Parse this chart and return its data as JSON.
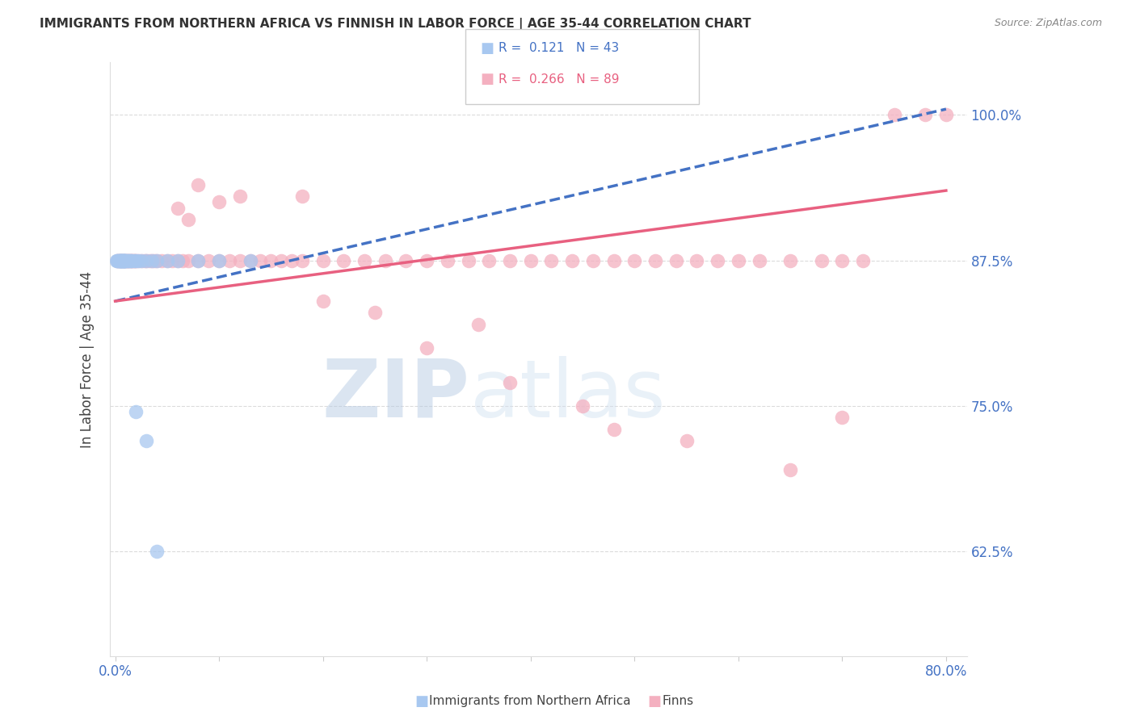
{
  "title": "IMMIGRANTS FROM NORTHERN AFRICA VS FINNISH IN LABOR FORCE | AGE 35-44 CORRELATION CHART",
  "source": "Source: ZipAtlas.com",
  "ylabel": "In Labor Force | Age 35-44",
  "yticks": [
    0.625,
    0.75,
    0.875,
    1.0
  ],
  "ytick_labels": [
    "62.5%",
    "75.0%",
    "87.5%",
    "100.0%"
  ],
  "xlim": [
    -0.005,
    0.82
  ],
  "ylim": [
    0.535,
    1.045
  ],
  "legend_r_blue": "0.121",
  "legend_n_blue": "43",
  "legend_r_pink": "0.266",
  "legend_n_pink": "89",
  "blue_color": "#a8c8f0",
  "pink_color": "#f4b0c0",
  "trend_blue_color": "#4472c4",
  "trend_pink_color": "#e86080",
  "watermark_zip": "ZIP",
  "watermark_atlas": "atlas",
  "blue_x": [
    0.001,
    0.002,
    0.003,
    0.003,
    0.004,
    0.004,
    0.005,
    0.005,
    0.005,
    0.006,
    0.006,
    0.006,
    0.007,
    0.007,
    0.007,
    0.008,
    0.008,
    0.009,
    0.009,
    0.01,
    0.01,
    0.01,
    0.012,
    0.012,
    0.013,
    0.014,
    0.015,
    0.016,
    0.018,
    0.02,
    0.022,
    0.025,
    0.03,
    0.035,
    0.04,
    0.05,
    0.06,
    0.08,
    0.1,
    0.13,
    0.02,
    0.03,
    0.04
  ],
  "blue_y": [
    0.875,
    0.875,
    0.875,
    0.875,
    0.875,
    0.875,
    0.875,
    0.875,
    0.875,
    0.875,
    0.875,
    0.875,
    0.875,
    0.875,
    0.875,
    0.875,
    0.875,
    0.875,
    0.875,
    0.875,
    0.875,
    0.875,
    0.875,
    0.875,
    0.875,
    0.875,
    0.875,
    0.875,
    0.875,
    0.875,
    0.875,
    0.875,
    0.875,
    0.875,
    0.875,
    0.875,
    0.875,
    0.875,
    0.875,
    0.875,
    0.745,
    0.72,
    0.625
  ],
  "pink_x": [
    0.002,
    0.003,
    0.004,
    0.005,
    0.006,
    0.007,
    0.008,
    0.009,
    0.01,
    0.011,
    0.012,
    0.013,
    0.014,
    0.015,
    0.016,
    0.017,
    0.018,
    0.019,
    0.02,
    0.022,
    0.025,
    0.028,
    0.03,
    0.033,
    0.035,
    0.038,
    0.04,
    0.045,
    0.05,
    0.055,
    0.06,
    0.065,
    0.07,
    0.08,
    0.09,
    0.1,
    0.11,
    0.12,
    0.13,
    0.14,
    0.15,
    0.16,
    0.17,
    0.18,
    0.2,
    0.22,
    0.24,
    0.26,
    0.28,
    0.3,
    0.32,
    0.34,
    0.36,
    0.38,
    0.4,
    0.42,
    0.44,
    0.46,
    0.48,
    0.5,
    0.52,
    0.54,
    0.56,
    0.58,
    0.6,
    0.62,
    0.65,
    0.68,
    0.7,
    0.72,
    0.75,
    0.78,
    0.8,
    0.55,
    0.65,
    0.7,
    0.3,
    0.38,
    0.45,
    0.48,
    0.25,
    0.35,
    0.2,
    0.12,
    0.18,
    0.08,
    0.1,
    0.06,
    0.07
  ],
  "pink_y": [
    0.875,
    0.875,
    0.875,
    0.875,
    0.875,
    0.875,
    0.875,
    0.875,
    0.875,
    0.875,
    0.875,
    0.875,
    0.875,
    0.875,
    0.875,
    0.875,
    0.875,
    0.875,
    0.875,
    0.875,
    0.875,
    0.875,
    0.875,
    0.875,
    0.875,
    0.875,
    0.875,
    0.875,
    0.875,
    0.875,
    0.875,
    0.875,
    0.875,
    0.875,
    0.875,
    0.875,
    0.875,
    0.875,
    0.875,
    0.875,
    0.875,
    0.875,
    0.875,
    0.875,
    0.875,
    0.875,
    0.875,
    0.875,
    0.875,
    0.875,
    0.875,
    0.875,
    0.875,
    0.875,
    0.875,
    0.875,
    0.875,
    0.875,
    0.875,
    0.875,
    0.875,
    0.875,
    0.875,
    0.875,
    0.875,
    0.875,
    0.875,
    0.875,
    0.875,
    0.875,
    1.0,
    1.0,
    1.0,
    0.72,
    0.695,
    0.74,
    0.8,
    0.77,
    0.75,
    0.73,
    0.83,
    0.82,
    0.84,
    0.93,
    0.93,
    0.94,
    0.925,
    0.92,
    0.91
  ],
  "trend_blue_x0": 0.0,
  "trend_blue_x1": 0.8,
  "trend_blue_y0": 0.84,
  "trend_blue_y1": 1.005,
  "trend_pink_x0": 0.0,
  "trend_pink_x1": 0.8,
  "trend_pink_y0": 0.84,
  "trend_pink_y1": 0.935
}
